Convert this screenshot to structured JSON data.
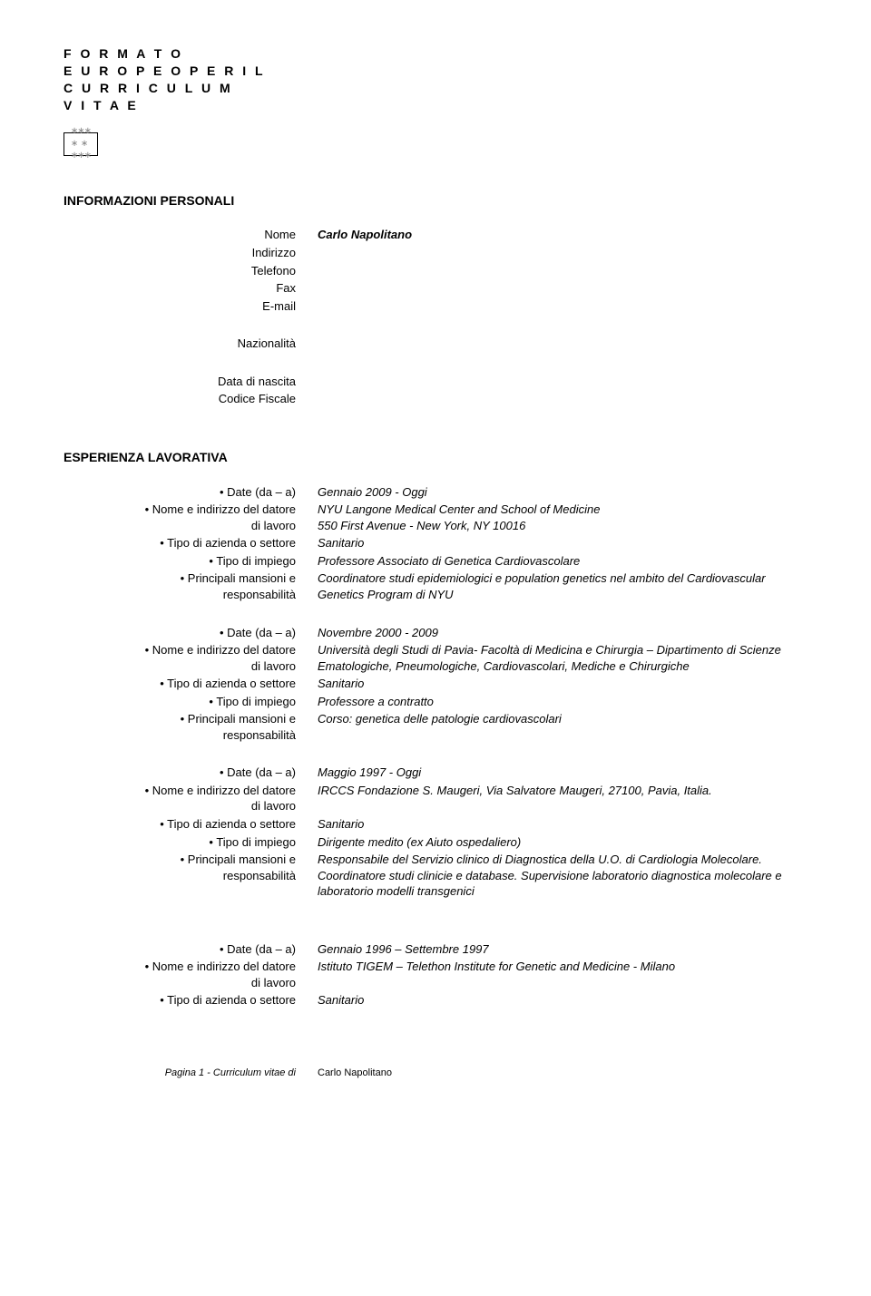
{
  "header": {
    "line1": "F O R M A T O",
    "line2": "E U R O P E O  P E R  I L",
    "line3": "C U R R I C U L U M",
    "line4": "V I T A E"
  },
  "personal": {
    "section": "INFORMAZIONI PERSONALI",
    "rows": [
      {
        "label": "Nome",
        "value": "Carlo Napolitano",
        "bold": true
      },
      {
        "label": "Indirizzo",
        "value": ""
      },
      {
        "label": "Telefono",
        "value": ""
      },
      {
        "label": "Fax",
        "value": ""
      },
      {
        "label": "E-mail",
        "value": ""
      }
    ],
    "extra": [
      {
        "label": "Nazionalità",
        "value": ""
      },
      {
        "label": "Data di nascita",
        "value": ""
      },
      {
        "label": "Codice Fiscale",
        "value": ""
      }
    ]
  },
  "experience": {
    "section": "ESPERIENZA LAVORATIVA",
    "jobs": [
      {
        "rows": [
          {
            "label": "• Date (da – a)",
            "value": "Gennaio 2009 - Oggi"
          },
          {
            "label": "• Nome e indirizzo del datore di lavoro",
            "value": "NYU Langone Medical Center and School of Medicine\n550 First Avenue - New York, NY 10016"
          },
          {
            "label": "• Tipo di azienda o settore",
            "value": "Sanitario"
          },
          {
            "label": "• Tipo di impiego",
            "value": "Professore Associato di Genetica Cardiovascolare"
          },
          {
            "label": "• Principali mansioni e responsabilità",
            "value": "Coordinatore studi epidemiologici e population genetics nel ambito del Cardiovascular Genetics Program di NYU"
          }
        ]
      },
      {
        "rows": [
          {
            "label": "• Date (da – a)",
            "value": "Novembre 2000 - 2009"
          },
          {
            "label": "• Nome e indirizzo del datore di lavoro",
            "value": "Università degli Studi di Pavia- Facoltà di Medicina e Chirurgia – Dipartimento di Scienze Ematologiche, Pneumologiche, Cardiovascolari, Mediche e Chirurgiche"
          },
          {
            "label": "• Tipo di azienda o settore",
            "value": "Sanitario"
          },
          {
            "label": "• Tipo di impiego",
            "value": "Professore a contratto"
          },
          {
            "label": "• Principali mansioni e responsabilità",
            "value": "Corso: genetica delle patologie cardiovascolari"
          }
        ]
      },
      {
        "rows": [
          {
            "label": "• Date (da – a)",
            "value": "Maggio 1997 - Oggi"
          },
          {
            "label": "• Nome e indirizzo del datore di lavoro",
            "value": "IRCCS Fondazione S. Maugeri, Via Salvatore Maugeri, 27100, Pavia, Italia."
          },
          {
            "label": "• Tipo di azienda o settore",
            "value": "Sanitario"
          },
          {
            "label": "• Tipo di impiego",
            "value": "Dirigente medito (ex Aiuto ospedaliero)"
          },
          {
            "label": "• Principali mansioni e responsabilità",
            "value": "Responsabile del Servizio clinico  di Diagnostica della U.O. di Cardiologia Molecolare.  Coordinatore studi clinicie e database. Supervisione laboratorio diagnostica molecolare e laboratorio modelli transgenici"
          }
        ]
      },
      {
        "rows": [
          {
            "label": "• Date (da – a)",
            "value": "Gennaio 1996 – Settembre 1997"
          },
          {
            "label": "• Nome e indirizzo del datore di lavoro",
            "value": "Istituto TIGEM – Telethon Institute for Genetic and Medicine - Milano"
          },
          {
            "label": "• Tipo di azienda o settore",
            "value": "Sanitario"
          }
        ]
      }
    ]
  },
  "footer": {
    "left": "Pagina 1 - Curriculum vitae di",
    "right": "Carlo Napolitano"
  }
}
